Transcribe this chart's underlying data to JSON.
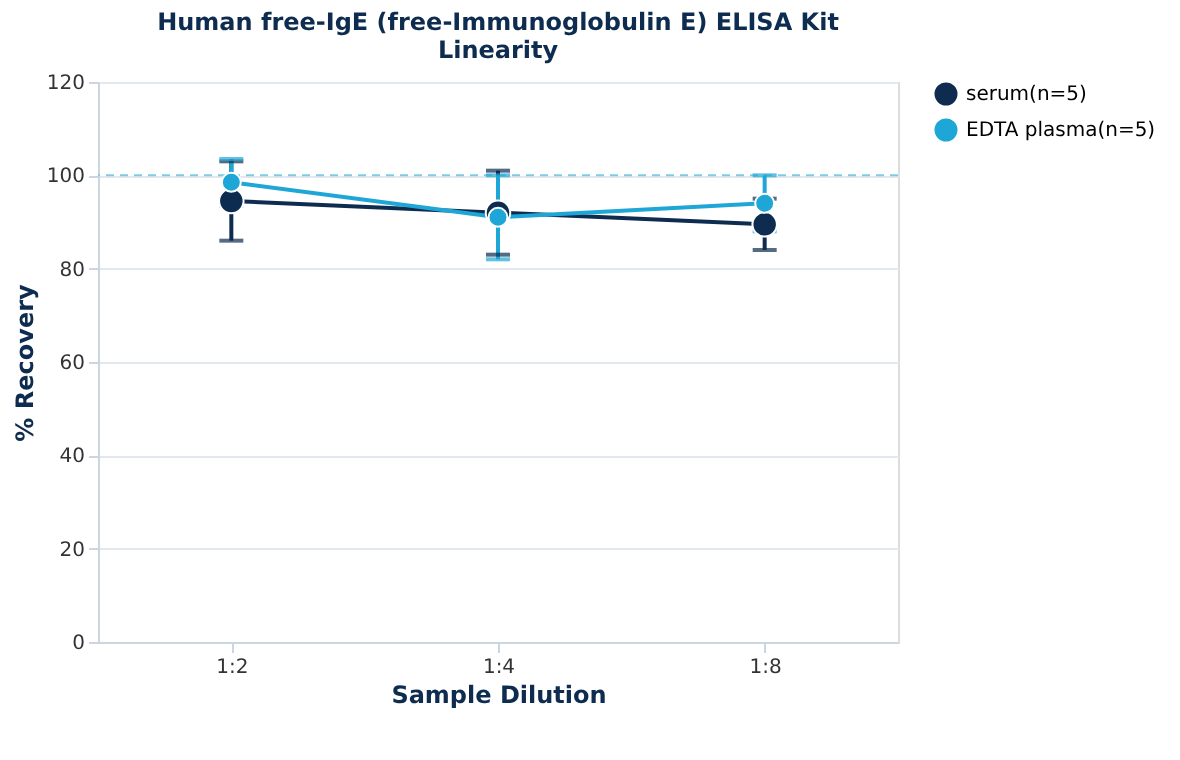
{
  "chart_data": {
    "type": "line",
    "title": [
      "Human free-IgE (free-Immunoglobulin E) ELISA Kit",
      "Linearity"
    ],
    "xlabel": "Sample Dilution",
    "ylabel": "% Recovery",
    "categories": [
      "1:2",
      "1:4",
      "1:8"
    ],
    "series": [
      {
        "name": "serum(n=5)",
        "color": "#0d2c4f",
        "values": [
          94.5,
          92,
          89.5
        ],
        "errors": [
          8.5,
          9,
          5.5
        ]
      },
      {
        "name": "EDTA plasma(n=5)",
        "color": "#1ea7d6",
        "values": [
          98.5,
          91,
          94
        ],
        "errors": [
          5,
          9,
          6
        ]
      }
    ],
    "ylim": [
      0,
      120
    ],
    "yticks": [
      0,
      20,
      40,
      60,
      80,
      100,
      120
    ],
    "grid": "y",
    "legend": "top right",
    "marker": "circle",
    "line_style": "solid",
    "ref_lines": [
      {
        "axis": "y",
        "value": 100,
        "color": "#7fcbe6",
        "line_style": "dashed"
      }
    ]
  }
}
